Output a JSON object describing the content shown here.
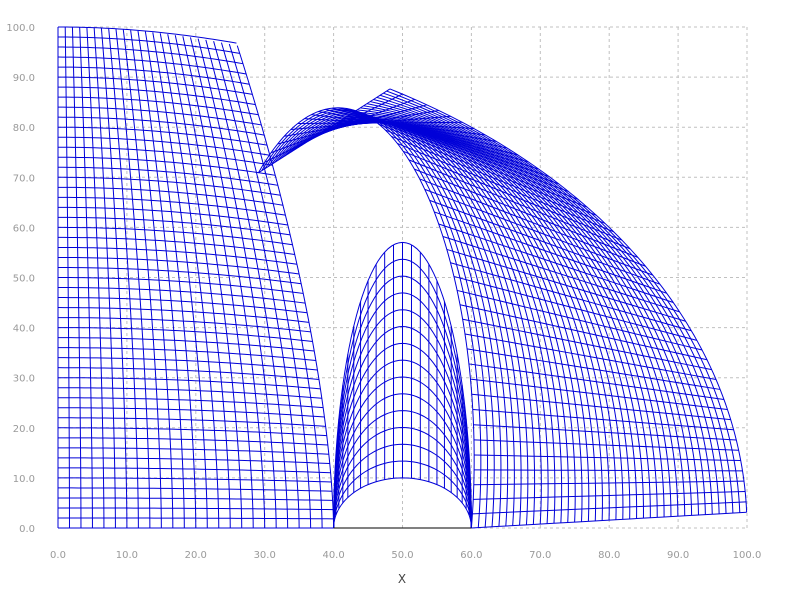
{
  "chart_data": {
    "type": "scatter",
    "title": "",
    "xlabel": "X",
    "ylabel": "",
    "xlim": [
      0,
      100
    ],
    "ylim": [
      0,
      100
    ],
    "grid": true,
    "xticks": [
      "0.0",
      "10.0",
      "20.0",
      "30.0",
      "40.0",
      "50.0",
      "60.0",
      "70.0",
      "80.0",
      "90.0",
      "100.0"
    ],
    "yticks": [
      "0.0",
      "10.0",
      "20.0",
      "30.0",
      "40.0",
      "50.0",
      "60.0",
      "70.0",
      "80.0",
      "90.0",
      "100.0"
    ],
    "colors": {
      "mesh": "#0000d8",
      "grid": "#c0c0c0",
      "base": "#000000"
    },
    "mesh": {
      "outer_radius": 100,
      "hole_center": [
        50,
        0
      ],
      "hole_radius": 10,
      "hole_span_x": [
        40,
        60
      ],
      "band_outer_radius": 30,
      "outer_block_rings": 40,
      "outer_block_spokes": 50,
      "band_rings": 14,
      "band_spokes": 24,
      "dome_apex": [
        50,
        57
      ]
    },
    "series": [
      {
        "values": [
          [
            0,
            0
          ],
          [
            40,
            0
          ],
          [
            60,
            0
          ],
          [
            100,
            0
          ],
          [
            0,
            100
          ],
          [
            50,
            10
          ],
          [
            40,
            10
          ],
          [
            60,
            10
          ],
          [
            33,
            90
          ],
          [
            50,
            57
          ]
        ]
      }
    ]
  }
}
